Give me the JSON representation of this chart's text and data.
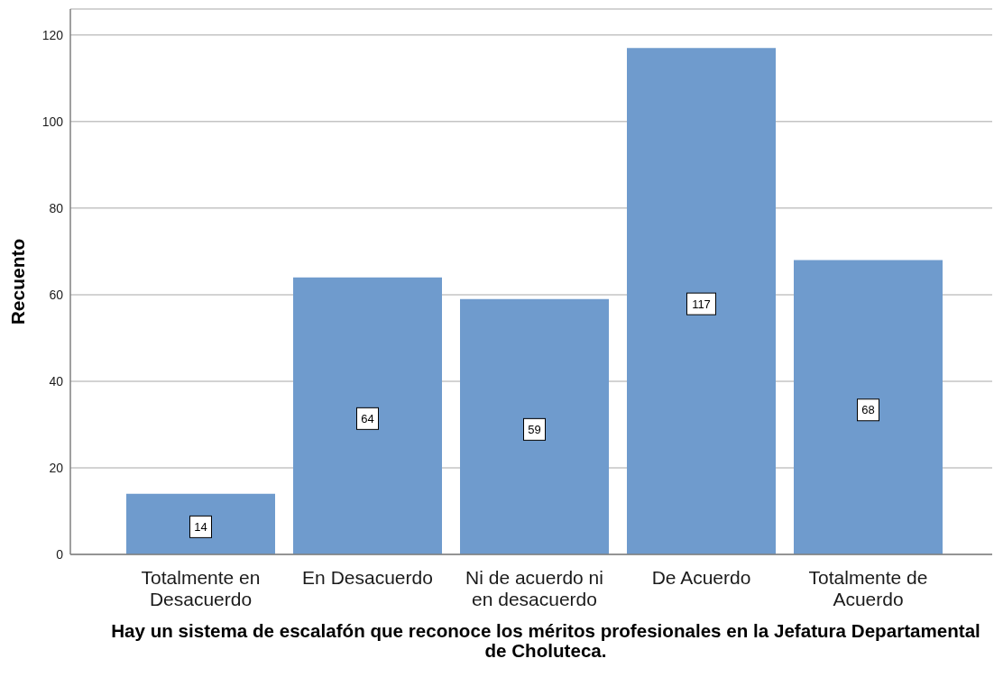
{
  "chart_data": {
    "type": "bar",
    "categories": [
      "Totalmente en Desacuerdo",
      "En Desacuerdo",
      "Ni de acuerdo ni en desacuerdo",
      "De Acuerdo",
      "Totalmente de Acuerdo"
    ],
    "values": [
      14,
      64,
      59,
      117,
      68
    ],
    "color": "#6f9bcd",
    "ylabel": "Recuento",
    "xlabel": "Hay un sistema de escalafón que reconoce los méritos profesionales en la Jefatura Departamental de Choluteca.",
    "ylim": [
      0,
      126
    ],
    "yticks": [
      0,
      20,
      40,
      60,
      80,
      100,
      120
    ],
    "grid": "y",
    "data_labels": true
  }
}
